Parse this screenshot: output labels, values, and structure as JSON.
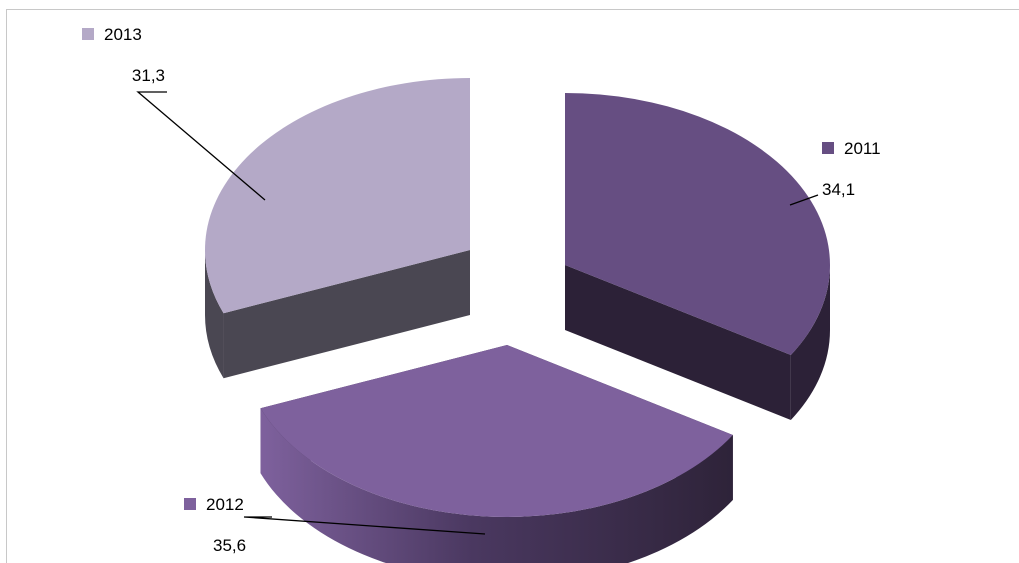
{
  "colors": {
    "background": "#ffffff",
    "frame": "#c8c8c8",
    "leader": "#000000"
  },
  "chart_data": {
    "type": "pie",
    "variant": "3d-exploded",
    "title": "",
    "legend": "none",
    "slices": [
      {
        "category": "2011",
        "value": 34.1,
        "value_label": "34,1",
        "color": "#664e82",
        "side_color": "#2c2137"
      },
      {
        "category": "2012",
        "value": 35.6,
        "value_label": "35,6",
        "color": "#7e619d",
        "side_color": "#3f3050"
      },
      {
        "category": "2013",
        "value": 31.3,
        "value_label": "31,3",
        "color": "#b4a9c7",
        "side_color": "#4a4752"
      }
    ]
  }
}
